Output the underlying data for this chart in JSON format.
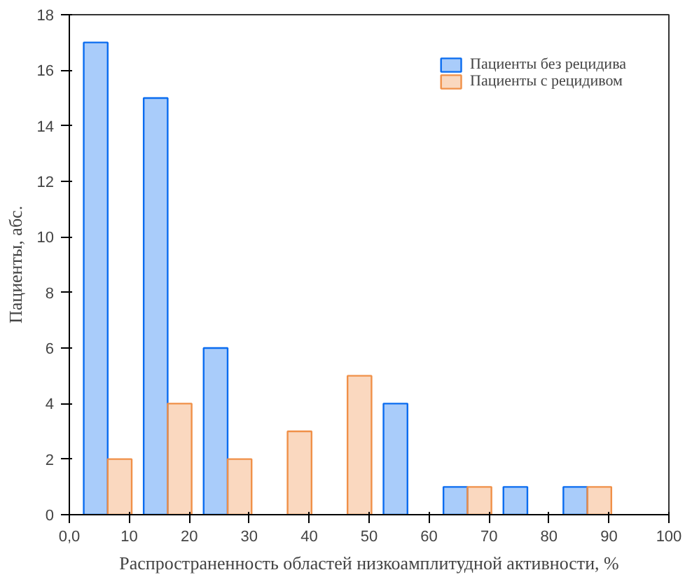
{
  "chart_data": {
    "type": "bar",
    "xlabel": "Распространенность областей низкоамплитудной активности, %",
    "ylabel": "Пациенты, абс.",
    "series": [
      {
        "name": "Пациенты без рецидива",
        "color": "#0a6cf0",
        "x": [
          4.4,
          14.4,
          24.4,
          54.4,
          64.4,
          74.4,
          84.4
        ],
        "values": [
          17,
          15,
          6,
          4,
          1,
          1,
          1
        ]
      },
      {
        "name": "Пациенты с рецидивом",
        "color": "#f09048",
        "x": [
          8.4,
          18.4,
          28.4,
          38.4,
          48.4,
          68.4,
          88.4
        ],
        "values": [
          2,
          4,
          2,
          3,
          5,
          1,
          1
        ]
      }
    ],
    "xlim": [
      0,
      100
    ],
    "xticks": [
      {
        "value": 0,
        "label": "0,0"
      },
      10,
      20,
      30,
      40,
      50,
      60,
      70,
      80,
      90,
      100
    ],
    "ylim": [
      0,
      18
    ],
    "yticks": [
      0,
      2,
      4,
      6,
      8,
      10,
      12,
      14,
      16,
      18
    ],
    "grid": false,
    "legend": "top right"
  }
}
